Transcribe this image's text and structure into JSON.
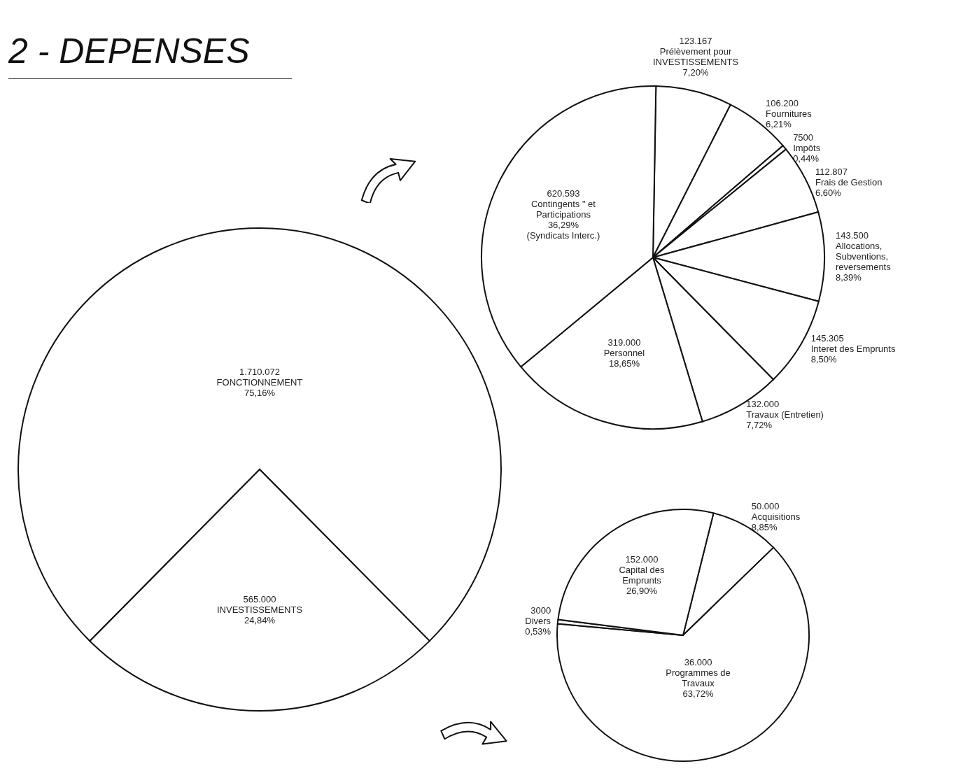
{
  "chart_data": [
    {
      "type": "pie",
      "title": "2 - DEPENSES",
      "categories": [
        "FONCTIONNEMENT",
        "INVESTISSEMENTS"
      ],
      "values": [
        75.16,
        24.84
      ],
      "colors": [
        "#ffffff",
        "#ffffff"
      ],
      "value_labels": [
        "1.710.072\n75,16%",
        "565.000\n24,84%"
      ]
    },
    {
      "type": "pie",
      "categories": [
        "Prélèvement pour INVESTISSEMENTS",
        "Fournitures",
        "Impôts",
        "Frais de Gestion",
        "Allocations, Subventions, reversements",
        "Interet des Emprunts",
        "Travaux (Entretien)",
        "Personnel",
        "Contingents \" et Participations"
      ],
      "values": [
        7.2,
        6.21,
        0.44,
        6.6,
        8.39,
        8.5,
        7.72,
        18.65,
        36.29
      ],
      "colors": [
        "#ffffff",
        "#ffffff",
        "#ffffff",
        "#ffffff",
        "#ffffff",
        "#ffffff",
        "#ffffff",
        "#ffffff",
        "#ffffff"
      ],
      "value_labels": [
        "123.167\n7,20%",
        "106.200\n6,21%",
        "7500\n0,44%",
        "112.807\n6,60%",
        "143.500\n8,39%",
        "145.305\n8,50%",
        "132.000\n7,72%",
        "319.000\n18,65%",
        "620.593\n36,29%\n(Syndicats Interc.)"
      ]
    },
    {
      "type": "pie",
      "categories": [
        "Acquisitions",
        "Programmes de Travaux",
        "Divers",
        "Capital des Emprunts"
      ],
      "values": [
        8.85,
        63.72,
        0.53,
        26.9
      ],
      "colors": [
        "#ffffff",
        "#ffffff",
        "#ffffff",
        "#ffffff"
      ],
      "value_labels": [
        "50.000\n8,85%",
        "36.000\n63,72%",
        "3000\n0,53%",
        "152.000\n26,90%"
      ]
    }
  ]
}
